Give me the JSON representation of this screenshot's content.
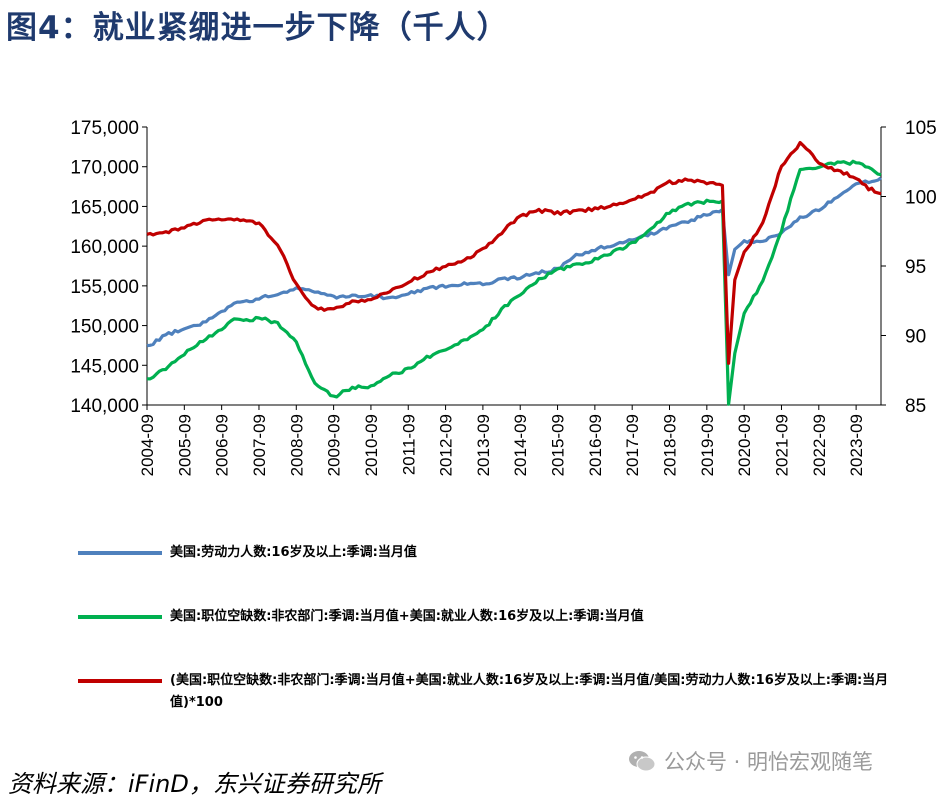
{
  "title": "图4：就业紧绷进一步下降（千人）",
  "source": "资料来源：iFinD，东兴证券研究所",
  "watermark": "公众号 · 明怡宏观随笔",
  "colors": {
    "title": "#1f3a6e",
    "blue": "#4f81bd",
    "green": "#00b050",
    "red": "#c00000"
  },
  "legend": [
    {
      "label": "美国:劳动力人数:16岁及以上:季调:当月值",
      "color": "#4f81bd"
    },
    {
      "label": "美国:职位空缺数:非农部门:季调:当月值+美国:就业人数:16岁及以上:季调:当月值",
      "color": "#00b050"
    },
    {
      "label": "(美国:职位空缺数:非农部门:季调:当月值+美国:就业人数:16岁及以上:季调:当月值/美国:劳动力人数:16岁及以上:季调:当月值)*100",
      "color": "#c00000"
    }
  ],
  "chart_data": {
    "type": "line",
    "x_ticks": [
      "2004-09",
      "2005-09",
      "2006-09",
      "2007-09",
      "2008-09",
      "2009-09",
      "2010-09",
      "2011-09",
      "2012-09",
      "2013-09",
      "2014-09",
      "2015-09",
      "2016-09",
      "2017-09",
      "2018-09",
      "2019-09",
      "2020-09",
      "2021-09",
      "2022-09",
      "2023-09"
    ],
    "x_range": [
      "2004-09",
      "2024-05"
    ],
    "y_left": {
      "min": 140000,
      "max": 175000,
      "ticks": [
        "140,000",
        "145,000",
        "150,000",
        "155,000",
        "160,000",
        "165,000",
        "170,000",
        "175,000"
      ]
    },
    "y_right": {
      "min": 85,
      "max": 105,
      "ticks": [
        "85",
        "90",
        "95",
        "100",
        "105"
      ]
    },
    "grid": false,
    "legend_position": "bottom",
    "series": [
      {
        "name": "美国:劳动力人数:16岁及以上:季调:当月值",
        "axis": "left",
        "color": "#4f81bd",
        "points": [
          [
            "2004-09",
            147300
          ],
          [
            "2005-03",
            148800
          ],
          [
            "2005-09",
            149600
          ],
          [
            "2006-03",
            150300
          ],
          [
            "2006-09",
            151800
          ],
          [
            "2007-01",
            152800
          ],
          [
            "2007-06",
            153000
          ],
          [
            "2007-09",
            153500
          ],
          [
            "2008-03",
            154000
          ],
          [
            "2008-09",
            154700
          ],
          [
            "2009-03",
            154300
          ],
          [
            "2009-09",
            153600
          ],
          [
            "2010-03",
            153800
          ],
          [
            "2010-09",
            153800
          ],
          [
            "2011-03",
            153400
          ],
          [
            "2011-09",
            154000
          ],
          [
            "2012-03",
            154600
          ],
          [
            "2012-09",
            155000
          ],
          [
            "2013-03",
            155300
          ],
          [
            "2013-09",
            155200
          ],
          [
            "2014-03",
            155800
          ],
          [
            "2014-09",
            156100
          ],
          [
            "2015-03",
            156700
          ],
          [
            "2015-09",
            157100
          ],
          [
            "2016-03",
            158800
          ],
          [
            "2016-09",
            159600
          ],
          [
            "2017-03",
            160200
          ],
          [
            "2017-09",
            160900
          ],
          [
            "2018-03",
            161500
          ],
          [
            "2018-09",
            162500
          ],
          [
            "2019-03",
            163100
          ],
          [
            "2019-09",
            164000
          ],
          [
            "2020-02",
            164600
          ],
          [
            "2020-04",
            156400
          ],
          [
            "2020-06",
            159600
          ],
          [
            "2020-09",
            160600
          ],
          [
            "2021-03",
            160600
          ],
          [
            "2021-09",
            161600
          ],
          [
            "2022-03",
            163500
          ],
          [
            "2022-09",
            164600
          ],
          [
            "2023-03",
            166300
          ],
          [
            "2023-09",
            167800
          ],
          [
            "2024-01",
            168100
          ],
          [
            "2024-05",
            168600
          ]
        ]
      },
      {
        "name": "美国:职位空缺数:非农部门:季调:当月值+美国:就业人数:16岁及以上:季调:当月值",
        "axis": "left",
        "color": "#00b050",
        "points": [
          [
            "2004-09",
            143200
          ],
          [
            "2005-03",
            144600
          ],
          [
            "2005-09",
            146500
          ],
          [
            "2006-03",
            148100
          ],
          [
            "2006-09",
            149500
          ],
          [
            "2007-01",
            150800
          ],
          [
            "2007-06",
            150700
          ],
          [
            "2007-09",
            151000
          ],
          [
            "2008-03",
            150300
          ],
          [
            "2008-09",
            147900
          ],
          [
            "2009-03",
            142700
          ],
          [
            "2009-09",
            141000
          ],
          [
            "2010-03",
            142200
          ],
          [
            "2010-09",
            142300
          ],
          [
            "2011-03",
            143700
          ],
          [
            "2011-09",
            144500
          ],
          [
            "2012-03",
            146000
          ],
          [
            "2012-09",
            147000
          ],
          [
            "2013-03",
            148100
          ],
          [
            "2013-09",
            149400
          ],
          [
            "2014-03",
            152000
          ],
          [
            "2014-09",
            154000
          ],
          [
            "2015-03",
            155800
          ],
          [
            "2015-09",
            157000
          ],
          [
            "2016-03",
            157600
          ],
          [
            "2016-09",
            158300
          ],
          [
            "2017-03",
            159300
          ],
          [
            "2017-09",
            160300
          ],
          [
            "2018-03",
            162100
          ],
          [
            "2018-09",
            164300
          ],
          [
            "2019-03",
            165300
          ],
          [
            "2019-09",
            165600
          ],
          [
            "2020-02",
            165700
          ],
          [
            "2020-04",
            140100
          ],
          [
            "2020-06",
            146500
          ],
          [
            "2020-09",
            151500
          ],
          [
            "2021-03",
            155600
          ],
          [
            "2021-09",
            162000
          ],
          [
            "2022-03",
            169800
          ],
          [
            "2022-09",
            170000
          ],
          [
            "2023-03",
            170500
          ],
          [
            "2023-09",
            170500
          ],
          [
            "2024-01",
            169900
          ],
          [
            "2024-05",
            169000
          ]
        ]
      },
      {
        "name": "(美国:职位空缺数:非农部门:季调:当月值+美国:就业人数:16岁及以上:季调:当月值/美国:劳动力人数:16岁及以上:季调:当月值)*100",
        "axis": "right",
        "color": "#c00000",
        "points": [
          [
            "2004-09",
            97.2
          ],
          [
            "2005-03",
            97.4
          ],
          [
            "2005-09",
            97.8
          ],
          [
            "2006-03",
            98.2
          ],
          [
            "2006-09",
            98.4
          ],
          [
            "2007-01",
            98.3
          ],
          [
            "2007-06",
            98.3
          ],
          [
            "2007-09",
            98.0
          ],
          [
            "2008-03",
            96.6
          ],
          [
            "2008-09",
            93.6
          ],
          [
            "2009-03",
            92.0
          ],
          [
            "2009-09",
            91.8
          ],
          [
            "2010-03",
            92.5
          ],
          [
            "2010-09",
            92.6
          ],
          [
            "2011-03",
            93.2
          ],
          [
            "2011-09",
            93.8
          ],
          [
            "2012-03",
            94.5
          ],
          [
            "2012-09",
            95.0
          ],
          [
            "2013-03",
            95.4
          ],
          [
            "2013-09",
            96.2
          ],
          [
            "2014-03",
            97.4
          ],
          [
            "2014-09",
            98.6
          ],
          [
            "2015-03",
            99.0
          ],
          [
            "2015-09",
            98.8
          ],
          [
            "2016-03",
            98.9
          ],
          [
            "2016-09",
            99.1
          ],
          [
            "2017-03",
            99.4
          ],
          [
            "2017-09",
            99.8
          ],
          [
            "2018-03",
            100.3
          ],
          [
            "2018-09",
            101.0
          ],
          [
            "2019-03",
            101.2
          ],
          [
            "2019-09",
            101.0
          ],
          [
            "2020-02",
            100.8
          ],
          [
            "2020-04",
            88.0
          ],
          [
            "2020-06",
            94.0
          ],
          [
            "2020-09",
            96.0
          ],
          [
            "2021-03",
            98.0
          ],
          [
            "2021-09",
            102.2
          ],
          [
            "2022-03",
            103.8
          ],
          [
            "2022-09",
            102.5
          ],
          [
            "2023-03",
            101.8
          ],
          [
            "2023-09",
            101.4
          ],
          [
            "2024-01",
            100.6
          ],
          [
            "2024-05",
            100.2
          ]
        ]
      }
    ]
  }
}
